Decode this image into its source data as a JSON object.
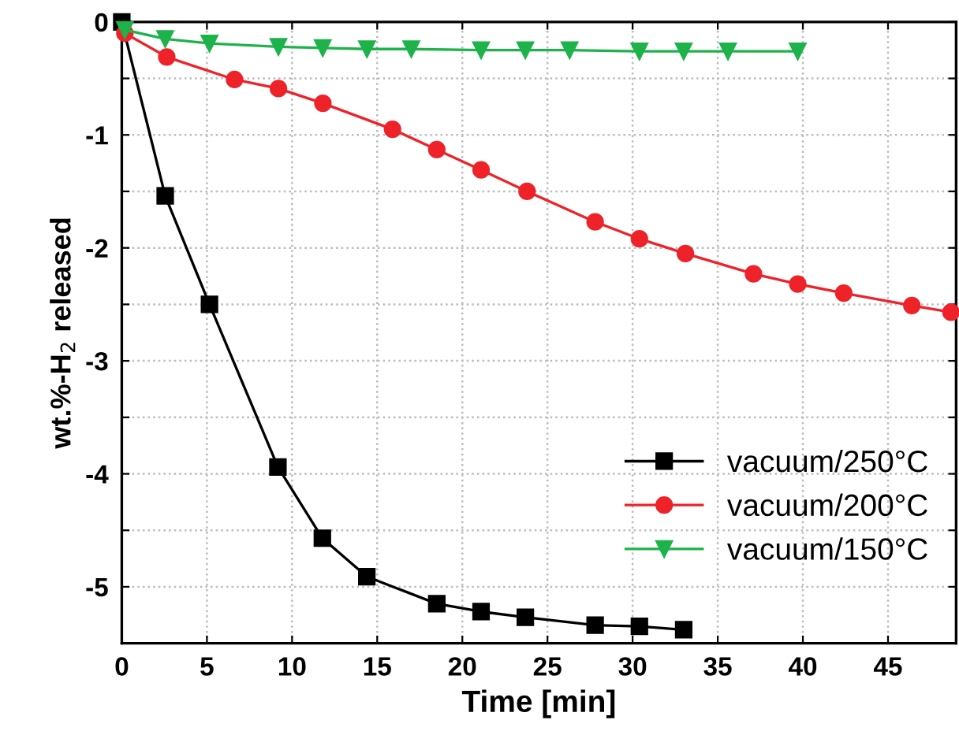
{
  "chart_data": {
    "type": "line",
    "xlabel": "Time [min]",
    "ylabel": "wt.%-H$_{2}$ released",
    "xlim": [
      0,
      49
    ],
    "ylim": [
      -5.5,
      0
    ],
    "xticks": [
      0,
      5,
      10,
      15,
      20,
      25,
      30,
      35,
      40,
      45
    ],
    "yticks": [
      -5,
      {
        "value": -4.5,
        "label": null
      },
      -4,
      {
        "value": -3.5,
        "label": null
      },
      -3,
      {
        "value": -2.5,
        "label": null
      },
      -2,
      {
        "value": -1.5,
        "label": null
      },
      -1,
      {
        "value": -0.5,
        "label": null
      },
      0
    ],
    "grid": true,
    "legend": "bottom right",
    "line_style": "solid",
    "series": [
      {
        "name": "vacuum/250°C",
        "color": "#000000",
        "marker": "square",
        "x": [
          0,
          2.55,
          5.15,
          9.17,
          11.78,
          14.39,
          18.5,
          21.1,
          23.7,
          27.8,
          30.4,
          33.0
        ],
        "values": [
          0,
          -1.54,
          -2.5,
          -3.94,
          -4.57,
          -4.91,
          -5.15,
          -5.22,
          -5.27,
          -5.34,
          -5.35,
          -5.38
        ]
      },
      {
        "name": "vacuum/200°C",
        "color": "#ee2229",
        "marker": "circle",
        "x": [
          0.18,
          2.64,
          6.62,
          9.2,
          11.81,
          15.9,
          18.5,
          21.1,
          23.8,
          27.8,
          30.4,
          33.1,
          37.1,
          39.7,
          42.4,
          46.4,
          48.7
        ],
        "values": [
          -0.1,
          -0.31,
          -0.51,
          -0.59,
          -0.72,
          -0.95,
          -1.13,
          -1.31,
          -1.5,
          -1.77,
          -1.92,
          -2.05,
          -2.23,
          -2.32,
          -2.4,
          -2.51,
          -2.57
        ]
      },
      {
        "name": "vacuum/150°C",
        "color": "#1db34a",
        "marker": "triangle",
        "x": [
          0.18,
          2.55,
          5.15,
          9.2,
          11.8,
          14.4,
          17.0,
          21.1,
          23.7,
          26.3,
          30.4,
          33.0,
          35.6,
          39.7
        ],
        "values": [
          -0.07,
          -0.15,
          -0.19,
          -0.22,
          -0.23,
          -0.24,
          -0.24,
          -0.25,
          -0.25,
          -0.25,
          -0.26,
          -0.26,
          -0.26,
          -0.26
        ]
      }
    ]
  }
}
